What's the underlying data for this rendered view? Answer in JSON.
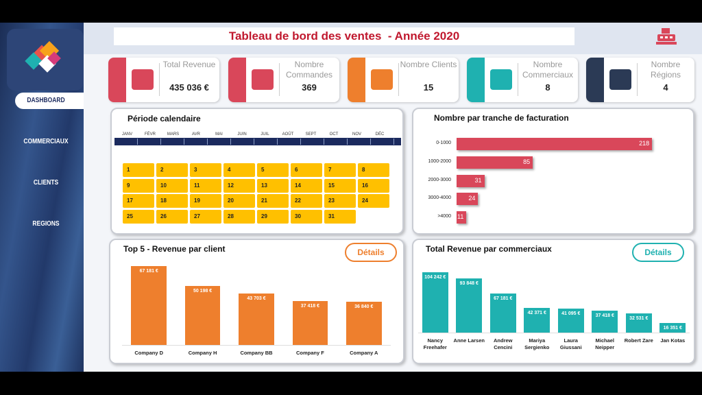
{
  "header": {
    "title": "Tableau de bord des ventes  - Année 2020"
  },
  "nav": [
    "DASHBOARD",
    "COMMERCIAUX",
    "CLIENTS",
    "REGIONS"
  ],
  "kpis": [
    {
      "label": "Total Revenue",
      "value": "435 036 €",
      "color": "#d9475a"
    },
    {
      "label": "Nombre Commandes",
      "value": "369",
      "color": "#d9475a"
    },
    {
      "label": "Nombre Clients",
      "value": "15",
      "color": "#ee7f2d"
    },
    {
      "label": "Nombre Commerciaux",
      "value": "8",
      "color": "#1fb1b0"
    },
    {
      "label": "Nombre Régions",
      "value": "4",
      "color": "#2b3a55"
    }
  ],
  "calendar": {
    "title": "Période calendaire",
    "months": [
      "JANV",
      "FÉVR",
      "MARS",
      "AVR",
      "MAI",
      "JUIN",
      "JUIL",
      "AOÛT",
      "SEPT",
      "OCT",
      "NOV",
      "DÉC"
    ],
    "days": [
      1,
      2,
      3,
      4,
      5,
      6,
      7,
      8,
      9,
      10,
      11,
      12,
      13,
      14,
      15,
      16,
      17,
      18,
      19,
      20,
      21,
      22,
      23,
      24,
      25,
      26,
      27,
      28,
      29,
      30,
      31
    ]
  },
  "chart_data": [
    {
      "type": "bar",
      "orientation": "horizontal",
      "title": "Nombre par tranche de facturation",
      "categories": [
        "0-1000",
        "1000-2000",
        "2000-3000",
        "3000-4000",
        ">4000"
      ],
      "values": [
        218,
        85,
        31,
        24,
        11
      ],
      "color": "#d9475a",
      "xlim": [
        0,
        250
      ]
    },
    {
      "type": "bar",
      "title": "Top 5 - Revenue par client",
      "button": "Détails",
      "categories": [
        "Company D",
        "Company H",
        "Company BB",
        "Company F",
        "Company A"
      ],
      "values": [
        67181,
        50198,
        43703,
        37418,
        36840
      ],
      "value_labels": [
        "67 181 €",
        "50 198 €",
        "43 703 €",
        "37 418 €",
        "36 840 €"
      ],
      "color": "#ee7f2d",
      "ylim": [
        0,
        70000
      ]
    },
    {
      "type": "bar",
      "title": "Total Revenue par commerciaux",
      "button": "Détails",
      "categories": [
        "Nancy Freehafer",
        "Anne Larsen",
        "Andrew Cencini",
        "Mariya Sergienko",
        "Laura Giussani",
        "Michael Neipper",
        "Robert Zare",
        "Jan Kotas"
      ],
      "values": [
        104242,
        93848,
        67181,
        42371,
        41095,
        37418,
        32531,
        16351
      ],
      "value_labels": [
        "104 242 €",
        "93 848 €",
        "67 181 €",
        "42 371 €",
        "41 095 €",
        "37 418 €",
        "32 531 €",
        "16 351 €"
      ],
      "color": "#1fb1b0",
      "ylim": [
        0,
        110000
      ]
    }
  ]
}
